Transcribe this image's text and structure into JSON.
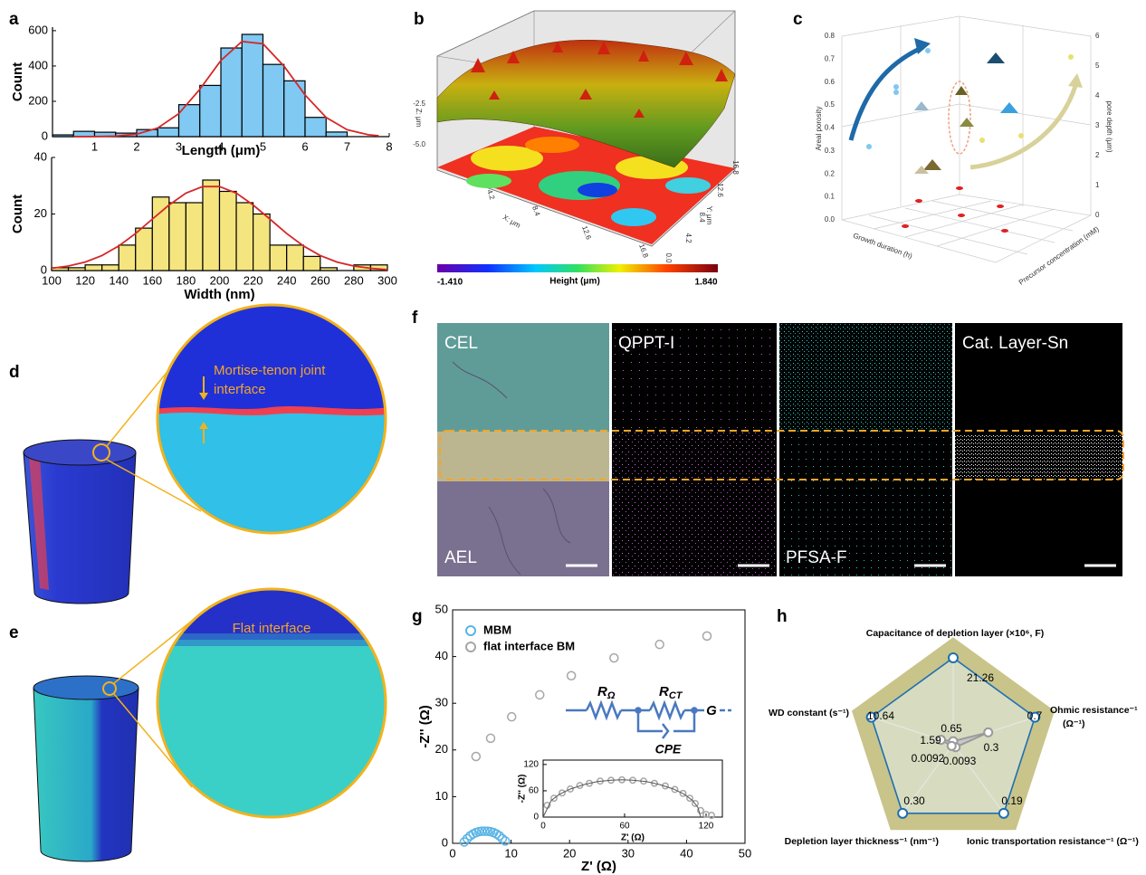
{
  "figure": {
    "labels": [
      "a",
      "b",
      "c",
      "d",
      "e",
      "f",
      "g",
      "h"
    ],
    "b": {
      "zlabel": "Z: μm",
      "xlabel": "X: μm",
      "ylabel": "Y: μm",
      "zticks": [
        "-2.5",
        "-5.0"
      ],
      "xticks": [
        "4.2",
        "8.4",
        "12.6",
        "16.8"
      ],
      "yticks": [
        "0.0",
        "4.2",
        "8.4",
        "12.6",
        "16.8"
      ],
      "colorbar_min": "-1.410",
      "colorbar_title": "Height (μm)",
      "colorbar_max": "1.840"
    },
    "c": {
      "ylabel": "Areal porosity",
      "y2label": "pore depth (μm)",
      "xlabel": "Growth duration (h)",
      "zlabel": "Precursor concentration (mM)",
      "yticks": [
        "0.0",
        "0.1",
        "0.2",
        "0.3",
        "0.4",
        "0.5",
        "0.6",
        "0.7",
        "0.8"
      ],
      "y2ticks": [
        "0",
        "1",
        "2",
        "3",
        "4",
        "5",
        "6"
      ]
    },
    "d": {
      "annotation_line1": "Mortise-tenon joint",
      "annotation_line2": "interface"
    },
    "e": {
      "annotation": "Flat interface"
    },
    "f": {
      "panel1_top": "CEL",
      "panel1_bottom": "AEL",
      "panel2_top": "QPPT-I",
      "panel3_bottom": "PFSA-F",
      "panel4_top": "Cat. Layer-Sn"
    },
    "g_circuit": {
      "r1": "R",
      "r1_sub": "Ω",
      "r2": "R",
      "r2_sub": "CT",
      "cpe": "CPE",
      "g": "G"
    }
  },
  "chart_data": [
    {
      "type": "histogram",
      "xlabel": "Length (μm)",
      "ylabel": "Count",
      "bins": [
        0,
        0.5,
        1,
        1.5,
        2,
        2.5,
        3,
        3.5,
        4,
        4.5,
        5,
        5.5,
        6,
        6.5,
        7,
        7.5
      ],
      "values": [
        10,
        30,
        25,
        20,
        40,
        50,
        181,
        290,
        502,
        579,
        409,
        316,
        109,
        26,
        0
      ],
      "color": "#7fc9f3",
      "fit": {
        "color": "#d62728",
        "x": [
          0.5,
          1,
          1.5,
          2,
          2.5,
          3,
          3.5,
          4,
          4.5,
          5,
          5.5,
          6,
          6.5,
          7,
          7.5,
          7.75
        ],
        "values": [
          0,
          0.6,
          3.3,
          14.4,
          49,
          130,
          268,
          431,
          539,
          526,
          399,
          236,
          109,
          39,
          11,
          5
        ]
      },
      "xlim": [
        0,
        8
      ],
      "xticks": [
        1,
        2,
        3,
        4,
        5,
        6,
        7,
        8
      ],
      "ylim": [
        0,
        620
      ],
      "yticks": [
        0,
        200,
        400,
        600
      ]
    },
    {
      "type": "histogram",
      "xlabel": "Width (nm)",
      "ylabel": "Count",
      "bins": [
        100,
        110,
        120,
        130,
        140,
        150,
        160,
        170,
        180,
        190,
        200,
        210,
        220,
        230,
        240,
        250,
        260,
        270,
        280,
        290,
        300
      ],
      "values": [
        1,
        1,
        2,
        2,
        9,
        15,
        26,
        24,
        24,
        32,
        28,
        24,
        20,
        9,
        9,
        5,
        1,
        0,
        2,
        2
      ],
      "color": "#f4e57f",
      "fit": {
        "color": "#d62728",
        "x": [
          100,
          110,
          120,
          130,
          140,
          150,
          160,
          170,
          180,
          190,
          200,
          210,
          220,
          230,
          240,
          250,
          260,
          270,
          280,
          290,
          300
        ],
        "values": [
          0.8,
          1.6,
          3.0,
          5.3,
          8.7,
          13.1,
          18.2,
          23.2,
          27.4,
          29.7,
          29.7,
          27.4,
          23.2,
          18.2,
          13.1,
          8.7,
          5.3,
          3.0,
          1.6,
          0.8,
          0.3
        ]
      },
      "xlim": [
        100,
        300
      ],
      "xticks": [
        100,
        120,
        140,
        160,
        180,
        200,
        220,
        240,
        260,
        280,
        300
      ],
      "ylim": [
        0,
        40
      ],
      "yticks": [
        0,
        20,
        40
      ]
    },
    {
      "type": "scatter",
      "xlabel": "Z' (Ω)",
      "ylabel": "-Z'' (Ω)",
      "series": [
        {
          "name": "MBM",
          "color": "#5ab4e5",
          "x": [
            2,
            2.5,
            3,
            3.5,
            4,
            4.5,
            5,
            5.5,
            6,
            6.5,
            7,
            7.5,
            8,
            8.5,
            9
          ],
          "values": [
            0.3,
            1.0,
            1.6,
            2.0,
            2.3,
            2.5,
            2.6,
            2.6,
            2.6,
            2.5,
            2.3,
            2.0,
            1.6,
            1.0,
            0.5
          ]
        },
        {
          "name": "flat interface BM",
          "color": "#a6a6a6",
          "x": [
            4.0,
            6.5,
            10.1,
            14.9,
            20.3,
            27.6,
            35.4,
            43.5
          ],
          "values": [
            18.6,
            22.5,
            27.1,
            31.8,
            35.9,
            39.7,
            42.6,
            44.4
          ]
        }
      ],
      "xlim": [
        0,
        50
      ],
      "xticks": [
        0,
        10,
        20,
        30,
        40,
        50
      ],
      "ylim": [
        0,
        50
      ],
      "yticks": [
        0,
        10,
        20,
        30,
        40,
        50
      ]
    },
    {
      "type": "scatter",
      "xlabel": "Z' (Ω)",
      "ylabel": "-Z'' (Ω)",
      "series": [
        {
          "color": "#a6a6a6",
          "x": [
            3,
            8,
            14,
            20,
            27,
            34,
            42,
            50,
            58,
            66,
            74,
            82,
            90,
            97,
            103,
            108,
            112,
            116,
            120,
            124
          ],
          "values": [
            27,
            43,
            55,
            64,
            72,
            77,
            82,
            84,
            85,
            84,
            82,
            77,
            71,
            63,
            54,
            43,
            31,
            15,
            6,
            4
          ]
        },
        {
          "color": "#555555",
          "line": true,
          "x": [
            0,
            6,
            12,
            20,
            30,
            40,
            50,
            58,
            66,
            76,
            86,
            96,
            104,
            110,
            114,
            116
          ],
          "values": [
            0,
            38,
            52,
            64,
            74,
            81,
            84,
            85,
            84,
            81,
            74,
            64,
            52,
            38,
            22,
            0
          ]
        }
      ],
      "xlim": [
        0,
        132
      ],
      "xticks": [
        0,
        60,
        120
      ],
      "ylim": [
        0,
        130
      ],
      "yticks": [
        0,
        60,
        120
      ]
    },
    {
      "type": "radar",
      "axes": [
        [
          "Capacitance of depletion layer (×10⁶, F)"
        ],
        [
          "Ohmic resistance⁻¹",
          "(Ω⁻¹)"
        ],
        [
          "Ionic transportation resistance⁻¹ (Ω⁻¹)"
        ],
        [
          "Depletion layer thickness⁻¹ (nm⁻¹)"
        ],
        [
          "WD constant (s⁻¹)"
        ]
      ],
      "series": [
        {
          "color": "#1f6fb2",
          "values": [
            21.26,
            0.7,
            0.19,
            0.3,
            10.64
          ],
          "value_labels": [
            "21.26",
            "0.7",
            "0.19",
            "0.30",
            "10.64"
          ]
        },
        {
          "color": "#9a9a9a",
          "values": [
            0.65,
            0.3,
            0.0093,
            0.0092,
            1.59
          ]
        }
      ]
    }
  ]
}
